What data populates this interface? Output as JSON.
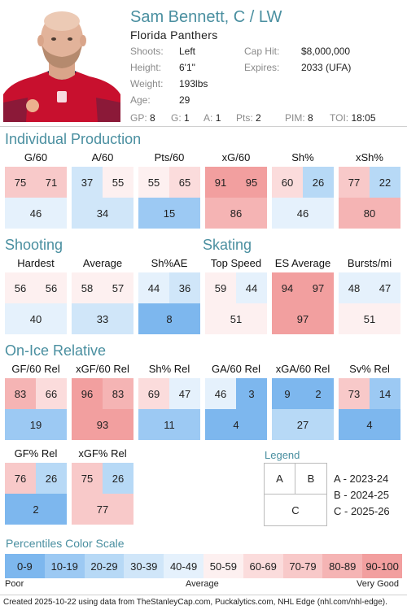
{
  "player": {
    "name": "Sam Bennett, C / LW",
    "team": "Florida Panthers",
    "info_left": [
      {
        "label": "Shoots:",
        "value": "Left"
      },
      {
        "label": "Height:",
        "value": "6'1\""
      },
      {
        "label": "Weight:",
        "value": "193lbs"
      },
      {
        "label": "Age:",
        "value": "29"
      }
    ],
    "info_right": [
      {
        "label": "Cap Hit:",
        "value": "$8,000,000"
      },
      {
        "label": "Expires:",
        "value": "2033 (UFA)"
      }
    ],
    "stats": [
      {
        "label": "GP:",
        "value": "8"
      },
      {
        "label": "G:",
        "value": "1"
      },
      {
        "label": "A:",
        "value": "1"
      },
      {
        "label": "Pts:",
        "value": "2"
      },
      {
        "label": "PIM:",
        "value": "8"
      },
      {
        "label": "TOI:",
        "value": "18:05"
      }
    ]
  },
  "sections": {
    "production": "Individual Production",
    "shooting": "Shooting",
    "skating": "Skating",
    "onice": "On-Ice Relative"
  },
  "metrics": {
    "g60": {
      "title": "G/60",
      "a": 75,
      "b": 71,
      "c": 46
    },
    "a60": {
      "title": "A/60",
      "a": 37,
      "b": 55,
      "c": 34
    },
    "pts60": {
      "title": "Pts/60",
      "a": 55,
      "b": 65,
      "c": 15
    },
    "xg60": {
      "title": "xG/60",
      "a": 91,
      "b": 95,
      "c": 86
    },
    "sh": {
      "title": "Sh%",
      "a": 60,
      "b": 26,
      "c": 46
    },
    "xsh": {
      "title": "xSh%",
      "a": 77,
      "b": 22,
      "c": 80
    },
    "hardest": {
      "title": "Hardest",
      "a": 56,
      "b": 56,
      "c": 40
    },
    "average": {
      "title": "Average",
      "a": 58,
      "b": 57,
      "c": 33
    },
    "shae": {
      "title": "Sh%AE",
      "a": 44,
      "b": 36,
      "c": 8
    },
    "topspeed": {
      "title": "Top Speed",
      "a": 59,
      "b": 44,
      "c": 51
    },
    "esavg": {
      "title": "ES Average",
      "a": 94,
      "b": 97,
      "c": 97
    },
    "bursts": {
      "title": "Bursts/mi",
      "a": 48,
      "b": 47,
      "c": 51
    },
    "gf60": {
      "title": "GF/60 Rel",
      "a": 83,
      "b": 66,
      "c": 19
    },
    "xgf60": {
      "title": "xGF/60 Rel",
      "a": 96,
      "b": 83,
      "c": 93
    },
    "shrel": {
      "title": "Sh% Rel",
      "a": 69,
      "b": 47,
      "c": 11
    },
    "ga60": {
      "title": "GA/60 Rel",
      "a": 46,
      "b": 3,
      "c": 4
    },
    "xga60": {
      "title": "xGA/60 Rel",
      "a": 9,
      "b": 2,
      "c": 27
    },
    "svrel": {
      "title": "Sv% Rel",
      "a": 73,
      "b": 14,
      "c": 4
    },
    "gfpct": {
      "title": "GF% Rel",
      "a": 76,
      "b": 26,
      "c": 2
    },
    "xgfpct": {
      "title": "xGF% Rel",
      "a": 75,
      "b": 26,
      "c": 77
    }
  },
  "legend": {
    "title": "Legend",
    "cells": {
      "a": "A",
      "b": "B",
      "c": "C"
    },
    "entries": [
      "A - 2023-24",
      "B - 2024-25",
      "C - 2025-26"
    ]
  },
  "scale": {
    "title": "Percentiles Color Scale",
    "segments": [
      {
        "label": "0-9",
        "color": "#7db7ee"
      },
      {
        "label": "10-19",
        "color": "#9cc9f3"
      },
      {
        "label": "20-29",
        "color": "#b7d9f6"
      },
      {
        "label": "30-39",
        "color": "#d0e6f9"
      },
      {
        "label": "40-49",
        "color": "#e5f1fc"
      },
      {
        "label": "50-59",
        "color": "#fdf0f0"
      },
      {
        "label": "60-69",
        "color": "#fbdcdc"
      },
      {
        "label": "70-79",
        "color": "#f8c9c9"
      },
      {
        "label": "80-89",
        "color": "#f5b4b4"
      },
      {
        "label": "90-100",
        "color": "#f29f9f"
      }
    ],
    "poor": "Poor",
    "average": "Average",
    "very_good": "Very Good"
  },
  "footer": "Created 2025-10-22 using data from TheStanleyCap.com, Puckalytics.com, NHL Edge (nhl.com/nhl-edge)."
}
